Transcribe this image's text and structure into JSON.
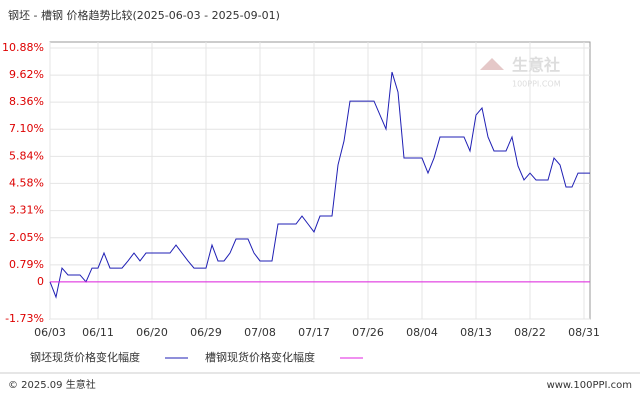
{
  "chart_data": {
    "type": "line",
    "title": "钢坯 - 槽钢 价格趋势比较(2025-06-03 - 2025-09-01)",
    "x": [
      "06/03",
      "06/04",
      "06/05",
      "06/06",
      "06/08",
      "06/09",
      "06/10",
      "06/11",
      "06/12",
      "06/13",
      "06/15",
      "06/16",
      "06/17",
      "06/18",
      "06/19",
      "06/23",
      "06/24",
      "06/25",
      "06/26",
      "06/27",
      "06/29",
      "06/30",
      "07/01",
      "07/02",
      "07/03",
      "07/04",
      "07/06",
      "07/07",
      "07/08",
      "07/10",
      "07/11",
      "07/14",
      "07/15",
      "07/16",
      "07/17",
      "07/18",
      "07/20",
      "07/21",
      "07/22",
      "07/23",
      "07/27",
      "07/28",
      "07/29",
      "07/30",
      "07/31",
      "08/01",
      "08/04",
      "08/05",
      "08/06",
      "08/07",
      "08/11",
      "08/12",
      "08/13",
      "08/14",
      "08/15",
      "08/16",
      "08/18",
      "08/19",
      "08/20",
      "08/21",
      "08/22",
      "08/23",
      "08/25",
      "08/26",
      "08/27",
      "08/28",
      "08/29",
      "08/30",
      "09/01"
    ],
    "series": [
      {
        "name": "钢坯现货价格变化幅度",
        "color": "#1f1fb4",
        "values": [
          0,
          -0.71,
          0.64,
          0.32,
          0.32,
          0,
          0.64,
          0.64,
          1.34,
          0.64,
          0.64,
          0.97,
          1.34,
          0.97,
          1.34,
          1.34,
          1.71,
          1.34,
          0.97,
          0.64,
          0.64,
          1.71,
          0.97,
          0.97,
          1.34,
          1.99,
          1.99,
          1.34,
          0.97,
          0.97,
          2.69,
          2.69,
          3.06,
          2.69,
          2.32,
          3.06,
          3.06,
          5.44,
          6.55,
          8.41,
          8.41,
          7.76,
          7.11,
          9.76,
          8.83,
          5.76,
          5.76,
          5.06,
          5.76,
          6.74,
          6.74,
          6.09,
          7.76,
          8.09,
          6.74,
          6.09,
          6.09,
          6.74,
          5.39,
          4.74,
          5.06,
          4.74,
          4.74,
          5.76,
          5.44,
          4.41,
          4.41,
          5.06,
          5.06
        ]
      },
      {
        "name": "槽钢现货价格变化幅度",
        "color": "#e020e0",
        "values": [
          0,
          0,
          0,
          0,
          0,
          0,
          0,
          0,
          0,
          0,
          0,
          0,
          0,
          0,
          0,
          0,
          0,
          0,
          0,
          0,
          0,
          0,
          0,
          0,
          0,
          0,
          0,
          0,
          0,
          0,
          0,
          0,
          0,
          0,
          0,
          0,
          0,
          0,
          0,
          0,
          0,
          0,
          0,
          0,
          0,
          0,
          0,
          0,
          0,
          0,
          0,
          0,
          0,
          0,
          0,
          0,
          0,
          0,
          0,
          0,
          0,
          0,
          0,
          0,
          0,
          0,
          0,
          0,
          0
        ]
      }
    ],
    "xlim": [
      "06/03",
      "09/01"
    ],
    "xticks": [
      "06/03",
      "06/11",
      "06/20",
      "06/29",
      "07/08",
      "07/17",
      "07/26",
      "08/04",
      "08/13",
      "08/22",
      "08/31"
    ],
    "ylim": [
      -1.73,
      10.88
    ],
    "yticks": [
      {
        "value": -1.73,
        "label": "-1.73%"
      },
      0,
      {
        "value": 0.79,
        "label": "0.79%"
      },
      {
        "value": 2.05,
        "label": "2.05%"
      },
      {
        "value": 3.31,
        "label": "3.31%"
      },
      {
        "value": 4.58,
        "label": "4.58%"
      },
      {
        "value": 5.84,
        "label": "5.84%"
      },
      {
        "value": 7.1,
        "label": "7.10%"
      },
      {
        "value": 8.36,
        "label": "8.36%"
      },
      {
        "value": 9.62,
        "label": "9.62%"
      },
      {
        "value": 10.88,
        "label": "10.88%"
      }
    ],
    "grid": true,
    "watermark": [
      "生意社",
      "100PPI.COM"
    ],
    "footer_left": "© 2025.09 生意社",
    "footer_right": "www.100PPI.com"
  }
}
